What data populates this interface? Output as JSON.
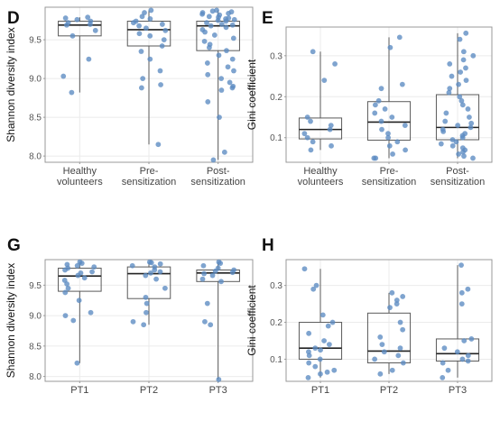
{
  "colors": {
    "point": "#5b8ac2",
    "box_stroke": "#5a5a5a",
    "median": "#222222",
    "grid": "#ebebeb",
    "frame": "#999999"
  },
  "chart_data": [
    {
      "panel": "D",
      "type": "box-jitter",
      "ylabel": "Shannon diversity index",
      "categories": [
        "Healthy\nvolunteers",
        "Pre-\nsensitization",
        "Post-\nsensitization"
      ],
      "yticks": [
        8.0,
        8.5,
        9.0,
        9.5
      ],
      "ylim": [
        7.92,
        9.92
      ],
      "boxes": [
        {
          "q1": 9.55,
          "median": 9.69,
          "q3": 9.74,
          "lo": 8.82,
          "hi": 9.79
        },
        {
          "q1": 9.42,
          "median": 9.63,
          "q3": 9.74,
          "lo": 8.15,
          "hi": 9.88
        },
        {
          "q1": 9.36,
          "median": 9.68,
          "q3": 9.74,
          "lo": 7.95,
          "hi": 9.88
        }
      ],
      "points": [
        [
          9.79,
          9.78,
          9.76,
          9.74,
          9.72,
          9.7,
          9.69,
          9.62,
          9.55,
          9.25,
          9.03,
          8.82
        ],
        [
          9.88,
          9.85,
          9.8,
          9.77,
          9.74,
          9.72,
          9.7,
          9.68,
          9.65,
          9.62,
          9.58,
          9.55,
          9.5,
          9.42,
          9.35,
          9.25,
          9.1,
          9.0,
          8.92,
          8.88,
          8.15
        ],
        [
          9.88,
          9.87,
          9.86,
          9.85,
          9.84,
          9.83,
          9.82,
          9.8,
          9.79,
          9.78,
          9.77,
          9.76,
          9.75,
          9.74,
          9.72,
          9.7,
          9.69,
          9.68,
          9.66,
          9.63,
          9.6,
          9.56,
          9.52,
          9.48,
          9.44,
          9.4,
          9.36,
          9.3,
          9.25,
          9.2,
          9.15,
          9.1,
          9.05,
          9.0,
          8.95,
          8.9,
          8.88,
          8.85,
          8.7,
          8.5,
          8.05,
          7.95
        ]
      ]
    },
    {
      "panel": "E",
      "type": "box-jitter",
      "ylabel": "Gini coefficient",
      "categories": [
        "Healthy\nvolunteers",
        "Pre-\nsensitization",
        "Post-\nsensitization"
      ],
      "yticks": [
        0.1,
        0.2,
        0.3
      ],
      "ylim": [
        0.04,
        0.37
      ],
      "boxes": [
        {
          "q1": 0.097,
          "median": 0.12,
          "q3": 0.148,
          "lo": 0.07,
          "hi": 0.31
        },
        {
          "q1": 0.094,
          "median": 0.138,
          "q3": 0.188,
          "lo": 0.05,
          "hi": 0.345
        },
        {
          "q1": 0.095,
          "median": 0.125,
          "q3": 0.205,
          "lo": 0.05,
          "hi": 0.355
        }
      ],
      "points": [
        [
          0.31,
          0.28,
          0.24,
          0.15,
          0.14,
          0.13,
          0.12,
          0.11,
          0.1,
          0.09,
          0.08,
          0.07
        ],
        [
          0.345,
          0.32,
          0.23,
          0.22,
          0.19,
          0.18,
          0.17,
          0.16,
          0.15,
          0.14,
          0.13,
          0.12,
          0.11,
          0.1,
          0.09,
          0.08,
          0.07,
          0.06,
          0.05,
          0.05
        ],
        [
          0.355,
          0.34,
          0.31,
          0.3,
          0.29,
          0.28,
          0.27,
          0.26,
          0.25,
          0.24,
          0.23,
          0.22,
          0.21,
          0.2,
          0.19,
          0.18,
          0.17,
          0.16,
          0.15,
          0.14,
          0.135,
          0.13,
          0.125,
          0.12,
          0.115,
          0.11,
          0.105,
          0.1,
          0.095,
          0.09,
          0.085,
          0.08,
          0.075,
          0.07,
          0.065,
          0.06,
          0.055,
          0.05
        ]
      ]
    },
    {
      "panel": "G",
      "type": "box-jitter",
      "ylabel": "Shannon diversity index",
      "categories": [
        "PT1",
        "PT2",
        "PT3"
      ],
      "yticks": [
        8.0,
        8.5,
        9.0,
        9.5
      ],
      "ylim": [
        7.92,
        9.92
      ],
      "boxes": [
        {
          "q1": 9.4,
          "median": 9.65,
          "q3": 9.78,
          "lo": 8.22,
          "hi": 9.88
        },
        {
          "q1": 9.28,
          "median": 9.69,
          "q3": 9.8,
          "lo": 8.85,
          "hi": 9.88
        },
        {
          "q1": 9.56,
          "median": 9.7,
          "q3": 9.75,
          "lo": 7.95,
          "hi": 9.88
        }
      ],
      "points": [
        [
          9.88,
          9.86,
          9.84,
          9.82,
          9.8,
          9.78,
          9.75,
          9.72,
          9.7,
          9.66,
          9.62,
          9.58,
          9.52,
          9.45,
          9.38,
          9.25,
          9.05,
          9.0,
          8.92,
          8.22
        ],
        [
          9.88,
          9.87,
          9.85,
          9.82,
          9.8,
          9.75,
          9.72,
          9.7,
          9.66,
          9.6,
          9.45,
          9.3,
          9.2,
          9.05,
          8.9,
          8.85
        ],
        [
          9.88,
          9.86,
          9.82,
          9.78,
          9.75,
          9.73,
          9.71,
          9.69,
          9.66,
          9.6,
          9.56,
          9.2,
          8.9,
          8.85,
          7.95
        ]
      ]
    },
    {
      "panel": "H",
      "type": "box-jitter",
      "ylabel": "Gini coefficient",
      "categories": [
        "PT1",
        "PT2",
        "PT3"
      ],
      "yticks": [
        0.1,
        0.2,
        0.3
      ],
      "ylim": [
        0.04,
        0.37
      ],
      "boxes": [
        {
          "q1": 0.1,
          "median": 0.13,
          "q3": 0.2,
          "lo": 0.05,
          "hi": 0.345
        },
        {
          "q1": 0.09,
          "median": 0.122,
          "q3": 0.225,
          "lo": 0.06,
          "hi": 0.28
        },
        {
          "q1": 0.095,
          "median": 0.115,
          "q3": 0.155,
          "lo": 0.05,
          "hi": 0.355
        }
      ],
      "points": [
        [
          0.345,
          0.3,
          0.29,
          0.22,
          0.2,
          0.19,
          0.17,
          0.15,
          0.14,
          0.13,
          0.125,
          0.12,
          0.11,
          0.1,
          0.09,
          0.08,
          0.07,
          0.065,
          0.06,
          0.05
        ],
        [
          0.28,
          0.27,
          0.26,
          0.25,
          0.24,
          0.2,
          0.18,
          0.16,
          0.14,
          0.13,
          0.12,
          0.11,
          0.1,
          0.09,
          0.07,
          0.06
        ],
        [
          0.355,
          0.29,
          0.28,
          0.25,
          0.155,
          0.15,
          0.13,
          0.12,
          0.11,
          0.1,
          0.095,
          0.09,
          0.07,
          0.05
        ]
      ]
    }
  ]
}
